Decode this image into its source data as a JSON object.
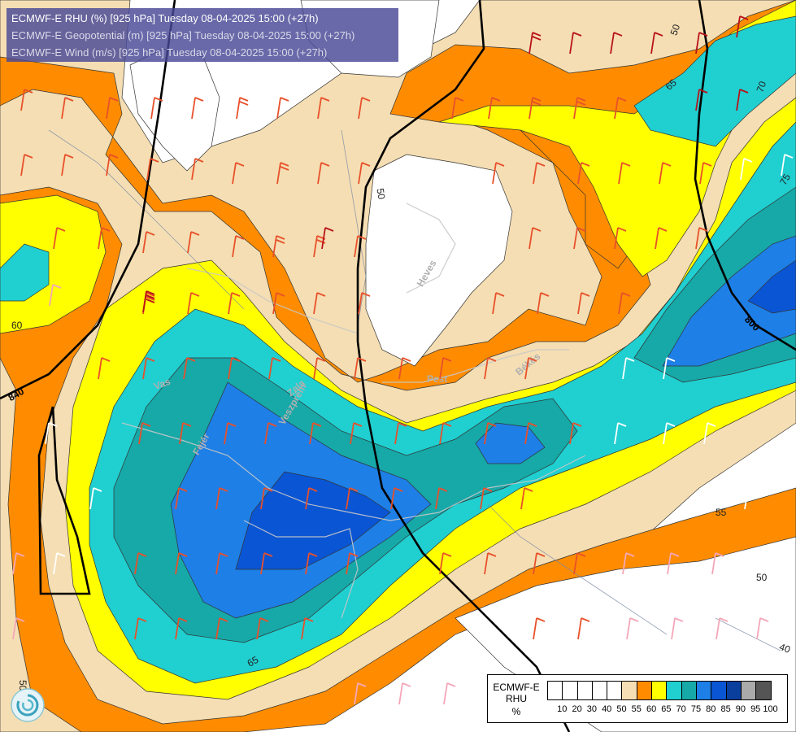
{
  "header": {
    "line1": "ECMWF-E RHU (%) [925 hPa] Tuesday 08-04-2025 15:00 (+27h)",
    "line2": "ECMWF-E Geopotential (m) [925 hPa] Tuesday 08-04-2025 15:00 (+27h)",
    "line3": "ECMWF-E Wind (m/s) [925 hPa] Tuesday 08-04-2025 15:00 (+27h)"
  },
  "legend": {
    "model": "ECMWF-E",
    "variable": "RHU",
    "unit": "%",
    "ticks": [
      "10",
      "20",
      "30",
      "40",
      "50",
      "55",
      "60",
      "65",
      "70",
      "75",
      "80",
      "85",
      "90",
      "95",
      "100"
    ],
    "colors": [
      "#ffffff",
      "#ffffff",
      "#ffffff",
      "#ffffff",
      "#ffffff",
      "#f5deb3",
      "#ff8c00",
      "#ffff00",
      "#20cfd0",
      "#17a8a8",
      "#1e7fe6",
      "#0a55d4",
      "#0a3f9e",
      "#aaaaaa",
      "#555555"
    ]
  },
  "contour_labels": {
    "rh": [
      "50",
      "55",
      "60",
      "65",
      "65",
      "70",
      "70",
      "75",
      "50",
      "40",
      "50",
      "55",
      "50"
    ],
    "geopotential": [
      "840",
      "800"
    ]
  },
  "place_names": [
    "Heves",
    "Pest",
    "Békés",
    "Vas",
    "Veszprém",
    "Fejér",
    "Zala"
  ],
  "colors": {
    "rh_55": "#f5deb3",
    "rh_60": "#ff8c00",
    "rh_65": "#ffff00",
    "rh_70": "#20cfd0",
    "rh_75": "#17a8a8",
    "rh_80": "#1e7fe6",
    "rh_85": "#0a55d4",
    "rh_90": "#0a3f9e",
    "header_bg": "#484896"
  }
}
